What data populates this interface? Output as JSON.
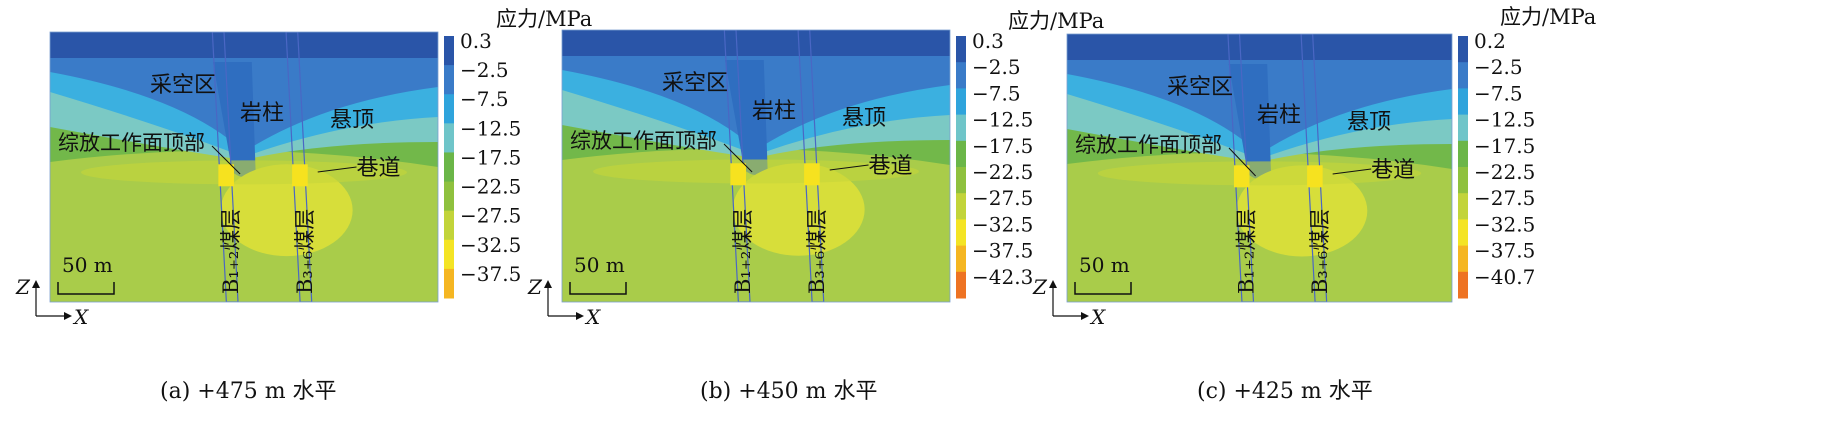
{
  "panels": [
    {
      "id": "a",
      "caption": "(a)  +475 m 水平",
      "colorbar_title": "应力/MPa",
      "colorbar_ticks": [
        "0.3",
        "−2.5",
        "−7.5",
        "−12.5",
        "−17.5",
        "−22.5",
        "−27.5",
        "−32.5",
        "−37.5"
      ],
      "labels": {
        "goaf": "采空区",
        "pillar": "岩柱",
        "hanging_roof": "悬顶",
        "face_top": "综放工作面顶部",
        "roadway": "巷道",
        "seam_left": "B₁₊₂煤层",
        "seam_right": "B₃₊₆煤层"
      },
      "scale": "50 m"
    },
    {
      "id": "b",
      "caption": "(b)  +450 m 水平",
      "colorbar_title": "应力/MPa",
      "colorbar_ticks": [
        "0.3",
        "−2.5",
        "−7.5",
        "−12.5",
        "−17.5",
        "−22.5",
        "−27.5",
        "−32.5",
        "−37.5",
        "−42.3"
      ],
      "labels": {
        "goaf": "采空区",
        "pillar": "岩柱",
        "hanging_roof": "悬顶",
        "face_top": "综放工作面顶部",
        "roadway": "巷道",
        "seam_left": "B₁₊₂煤层",
        "seam_right": "B₃₊₆煤层"
      },
      "scale": "50 m"
    },
    {
      "id": "c",
      "caption": "(c)  +425 m 水平",
      "colorbar_title": "应力/MPa",
      "colorbar_ticks": [
        "0.2",
        "−2.5",
        "−7.5",
        "−12.5",
        "−17.5",
        "−22.5",
        "−27.5",
        "−32.5",
        "−37.5",
        "−40.7"
      ],
      "labels": {
        "goaf": "采空区",
        "pillar": "岩柱",
        "hanging_roof": "悬顶",
        "face_top": "综放工作面顶部",
        "roadway": "巷道",
        "seam_left": "B₁₊₂煤层",
        "seam_right": "B₃₊₆煤层"
      },
      "scale": "50 m"
    }
  ],
  "axes": {
    "z": "Z",
    "x": "X"
  },
  "colors": {
    "scale": [
      "#2a55a8",
      "#3a7bc8",
      "#2fa4dc",
      "#6fc5c9",
      "#6bb648",
      "#8fc13e",
      "#c2d43a",
      "#f4e425",
      "#f5b622",
      "#ee7323",
      "#e2301f"
    ]
  }
}
